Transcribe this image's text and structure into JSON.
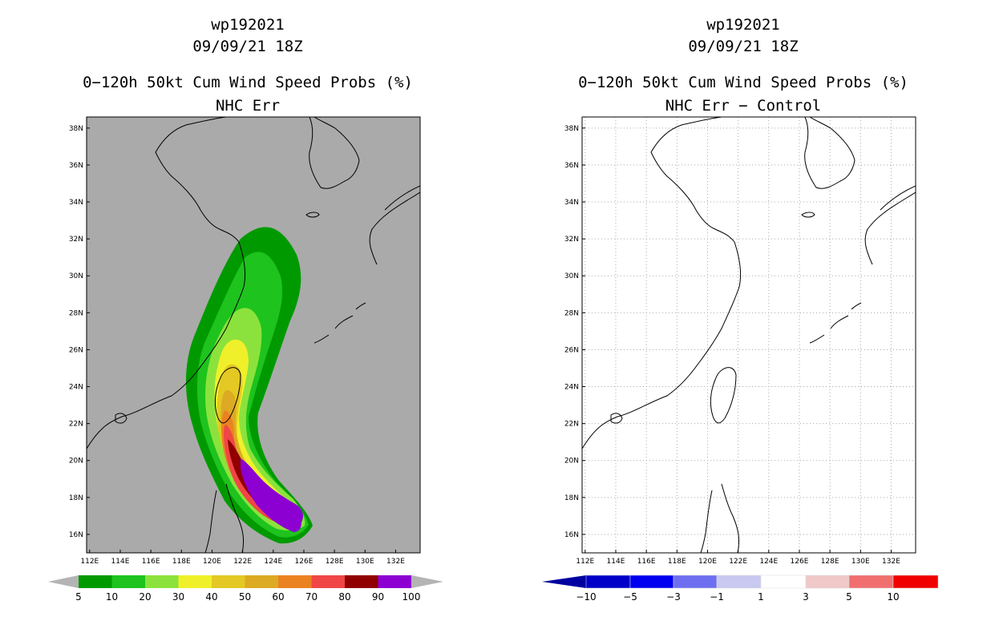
{
  "left": {
    "title_id": "wp192021",
    "title_time": "09/09/21 18Z",
    "title_product": "0−120h 50kt Cum Wind Speed Probs (%)",
    "title_sub": "NHC Err",
    "colorbar": {
      "labels": [
        "5",
        "10",
        "20",
        "30",
        "40",
        "50",
        "60",
        "70",
        "80",
        "90",
        "100"
      ],
      "colors": [
        "#009a00",
        "#1ec31e",
        "#8ce23c",
        "#f0f02a",
        "#e4c823",
        "#dcaa23",
        "#eb8222",
        "#f04646",
        "#910000",
        "#8c00d2"
      ],
      "end_color": "#b4b4b4"
    },
    "map_background": "#aaaaaa"
  },
  "right": {
    "title_id": "wp192021",
    "title_time": "09/09/21 18Z",
    "title_product": "0−120h 50kt Cum Wind Speed Probs (%)",
    "title_sub": "NHC Err − Control",
    "colorbar": {
      "labels": [
        "−10",
        "−5",
        "−3",
        "−1",
        "1",
        "3",
        "5",
        "10"
      ],
      "colors": [
        "#0000c8",
        "#0000f0",
        "#6e6ef0",
        "#c8c8f0",
        "#ffffff",
        "#f0c8c8",
        "#f06e6e",
        "#f00000"
      ],
      "end_low": "#0000a0",
      "end_high": "#8c0000"
    },
    "map_background": "#ffffff"
  },
  "lon_labels": [
    "112E",
    "114E",
    "116E",
    "118E",
    "120E",
    "122E",
    "124E",
    "126E",
    "128E",
    "130E",
    "132E"
  ],
  "lat_labels": [
    "16N",
    "18N",
    "20N",
    "22N",
    "24N",
    "26N",
    "28N",
    "30N",
    "32N",
    "34N",
    "36N",
    "38N"
  ]
}
